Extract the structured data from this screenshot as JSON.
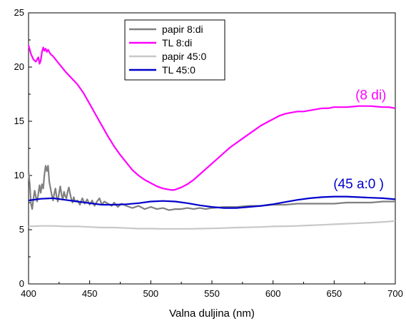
{
  "chart_data": {
    "type": "line",
    "title": "",
    "xlabel": "Valna duljina (nm)",
    "ylabel": "",
    "xlim": [
      400,
      700
    ],
    "ylim": [
      0,
      25
    ],
    "x_ticks": [
      400,
      450,
      500,
      550,
      600,
      650,
      700
    ],
    "y_ticks": [
      0,
      5,
      10,
      15,
      20,
      25
    ],
    "grid": false,
    "legend_position": "top-center",
    "series": [
      {
        "name": "papir 8:di",
        "color": "#808080",
        "points": [
          [
            400,
            10.3
          ],
          [
            401,
            9.2
          ],
          [
            402,
            7.4
          ],
          [
            403,
            6.9
          ],
          [
            404,
            7.9
          ],
          [
            405,
            8.6
          ],
          [
            406,
            8.0
          ],
          [
            407,
            7.6
          ],
          [
            408,
            8.3
          ],
          [
            409,
            9.1
          ],
          [
            410,
            8.4
          ],
          [
            411,
            9.2
          ],
          [
            412,
            8.8
          ],
          [
            413,
            10.1
          ],
          [
            414,
            10.9
          ],
          [
            415,
            10.4
          ],
          [
            416,
            10.9
          ],
          [
            417,
            9.4
          ],
          [
            418,
            8.8
          ],
          [
            419,
            8.2
          ],
          [
            420,
            7.7
          ],
          [
            421,
            8.3
          ],
          [
            422,
            8.8
          ],
          [
            423,
            8.0
          ],
          [
            424,
            7.6
          ],
          [
            425,
            8.4
          ],
          [
            426,
            9.0
          ],
          [
            427,
            8.2
          ],
          [
            428,
            7.8
          ],
          [
            429,
            8.5
          ],
          [
            430,
            8.1
          ],
          [
            431,
            7.9
          ],
          [
            432,
            8.5
          ],
          [
            433,
            8.9
          ],
          [
            434,
            8.3
          ],
          [
            435,
            7.8
          ],
          [
            436,
            7.5
          ],
          [
            437,
            8.0
          ],
          [
            438,
            7.6
          ],
          [
            440,
            7.7
          ],
          [
            442,
            7.3
          ],
          [
            444,
            7.9
          ],
          [
            446,
            7.4
          ],
          [
            448,
            7.8
          ],
          [
            450,
            7.3
          ],
          [
            452,
            7.7
          ],
          [
            454,
            7.2
          ],
          [
            456,
            7.6
          ],
          [
            458,
            7.9
          ],
          [
            460,
            7.3
          ],
          [
            462,
            7.6
          ],
          [
            465,
            7.4
          ],
          [
            468,
            7.2
          ],
          [
            470,
            7.5
          ],
          [
            473,
            7.1
          ],
          [
            476,
            7.4
          ],
          [
            480,
            7.2
          ],
          [
            485,
            7.0
          ],
          [
            490,
            7.2
          ],
          [
            495,
            6.9
          ],
          [
            500,
            7.1
          ],
          [
            505,
            6.9
          ],
          [
            510,
            7.0
          ],
          [
            515,
            6.8
          ],
          [
            520,
            6.9
          ],
          [
            525,
            6.9
          ],
          [
            530,
            7.0
          ],
          [
            535,
            6.9
          ],
          [
            540,
            7.0
          ],
          [
            545,
            6.9
          ],
          [
            550,
            7.0
          ],
          [
            560,
            7.1
          ],
          [
            570,
            7.1
          ],
          [
            580,
            7.2
          ],
          [
            590,
            7.2
          ],
          [
            600,
            7.3
          ],
          [
            610,
            7.3
          ],
          [
            620,
            7.4
          ],
          [
            630,
            7.4
          ],
          [
            640,
            7.4
          ],
          [
            650,
            7.4
          ],
          [
            660,
            7.5
          ],
          [
            670,
            7.5
          ],
          [
            680,
            7.5
          ],
          [
            690,
            7.6
          ],
          [
            700,
            7.6
          ]
        ]
      },
      {
        "name": "TL 8:di",
        "color": "#ff00ff",
        "points": [
          [
            400,
            22.0
          ],
          [
            402,
            21.2
          ],
          [
            404,
            20.7
          ],
          [
            406,
            20.5
          ],
          [
            408,
            20.9
          ],
          [
            409,
            20.3
          ],
          [
            410,
            20.6
          ],
          [
            411,
            21.4
          ],
          [
            412,
            21.8
          ],
          [
            413,
            21.5
          ],
          [
            414,
            21.7
          ],
          [
            415,
            21.4
          ],
          [
            416,
            21.6
          ],
          [
            418,
            21.2
          ],
          [
            420,
            21.0
          ],
          [
            425,
            20.3
          ],
          [
            430,
            19.6
          ],
          [
            435,
            19.0
          ],
          [
            440,
            18.4
          ],
          [
            445,
            17.6
          ],
          [
            450,
            16.6
          ],
          [
            455,
            15.6
          ],
          [
            460,
            14.6
          ],
          [
            465,
            13.6
          ],
          [
            470,
            12.7
          ],
          [
            475,
            11.9
          ],
          [
            480,
            11.2
          ],
          [
            485,
            10.5
          ],
          [
            490,
            10.0
          ],
          [
            495,
            9.6
          ],
          [
            500,
            9.3
          ],
          [
            505,
            9.0
          ],
          [
            510,
            8.8
          ],
          [
            515,
            8.7
          ],
          [
            518,
            8.65
          ],
          [
            520,
            8.7
          ],
          [
            525,
            8.9
          ],
          [
            530,
            9.2
          ],
          [
            535,
            9.6
          ],
          [
            540,
            10.1
          ],
          [
            545,
            10.6
          ],
          [
            550,
            11.1
          ],
          [
            555,
            11.6
          ],
          [
            560,
            12.1
          ],
          [
            565,
            12.6
          ],
          [
            570,
            13.0
          ],
          [
            575,
            13.4
          ],
          [
            580,
            13.8
          ],
          [
            585,
            14.2
          ],
          [
            590,
            14.6
          ],
          [
            595,
            14.9
          ],
          [
            600,
            15.2
          ],
          [
            605,
            15.5
          ],
          [
            610,
            15.7
          ],
          [
            615,
            15.8
          ],
          [
            620,
            15.9
          ],
          [
            625,
            15.9
          ],
          [
            630,
            16.0
          ],
          [
            635,
            16.1
          ],
          [
            640,
            16.2
          ],
          [
            645,
            16.2
          ],
          [
            650,
            16.3
          ],
          [
            655,
            16.3
          ],
          [
            660,
            16.3
          ],
          [
            665,
            16.35
          ],
          [
            670,
            16.4
          ],
          [
            675,
            16.4
          ],
          [
            680,
            16.4
          ],
          [
            685,
            16.35
          ],
          [
            690,
            16.3
          ],
          [
            695,
            16.3
          ],
          [
            700,
            16.2
          ]
        ]
      },
      {
        "name": "papir 45:0",
        "color": "#c8c8c8",
        "points": [
          [
            400,
            5.3
          ],
          [
            410,
            5.35
          ],
          [
            420,
            5.35
          ],
          [
            430,
            5.3
          ],
          [
            440,
            5.3
          ],
          [
            450,
            5.25
          ],
          [
            460,
            5.2
          ],
          [
            470,
            5.2
          ],
          [
            480,
            5.15
          ],
          [
            490,
            5.1
          ],
          [
            500,
            5.1
          ],
          [
            510,
            5.08
          ],
          [
            520,
            5.08
          ],
          [
            530,
            5.08
          ],
          [
            540,
            5.1
          ],
          [
            550,
            5.12
          ],
          [
            560,
            5.15
          ],
          [
            570,
            5.2
          ],
          [
            580,
            5.22
          ],
          [
            590,
            5.25
          ],
          [
            600,
            5.3
          ],
          [
            610,
            5.32
          ],
          [
            620,
            5.35
          ],
          [
            630,
            5.4
          ],
          [
            640,
            5.45
          ],
          [
            650,
            5.5
          ],
          [
            660,
            5.55
          ],
          [
            670,
            5.6
          ],
          [
            680,
            5.65
          ],
          [
            690,
            5.72
          ],
          [
            700,
            5.8
          ]
        ]
      },
      {
        "name": "TL 45:0",
        "color": "#0000cc",
        "points": [
          [
            400,
            7.7
          ],
          [
            410,
            7.85
          ],
          [
            420,
            7.9
          ],
          [
            430,
            7.75
          ],
          [
            440,
            7.6
          ],
          [
            450,
            7.45
          ],
          [
            460,
            7.3
          ],
          [
            470,
            7.3
          ],
          [
            480,
            7.35
          ],
          [
            490,
            7.45
          ],
          [
            500,
            7.6
          ],
          [
            510,
            7.65
          ],
          [
            520,
            7.6
          ],
          [
            530,
            7.45
          ],
          [
            540,
            7.25
          ],
          [
            550,
            7.1
          ],
          [
            560,
            7.0
          ],
          [
            570,
            7.0
          ],
          [
            580,
            7.1
          ],
          [
            590,
            7.2
          ],
          [
            600,
            7.35
          ],
          [
            610,
            7.55
          ],
          [
            620,
            7.75
          ],
          [
            630,
            7.9
          ],
          [
            640,
            8.0
          ],
          [
            650,
            8.05
          ],
          [
            660,
            8.05
          ],
          [
            670,
            8.0
          ],
          [
            680,
            7.95
          ],
          [
            690,
            7.9
          ],
          [
            700,
            7.8
          ]
        ]
      }
    ],
    "annotations": [
      {
        "text": "(8 di)",
        "color": "#ff00ff",
        "x": 680,
        "y": 17.0
      },
      {
        "text": "(45 a:0 )",
        "color": "#0000cc",
        "x": 670,
        "y": 8.8
      }
    ]
  }
}
